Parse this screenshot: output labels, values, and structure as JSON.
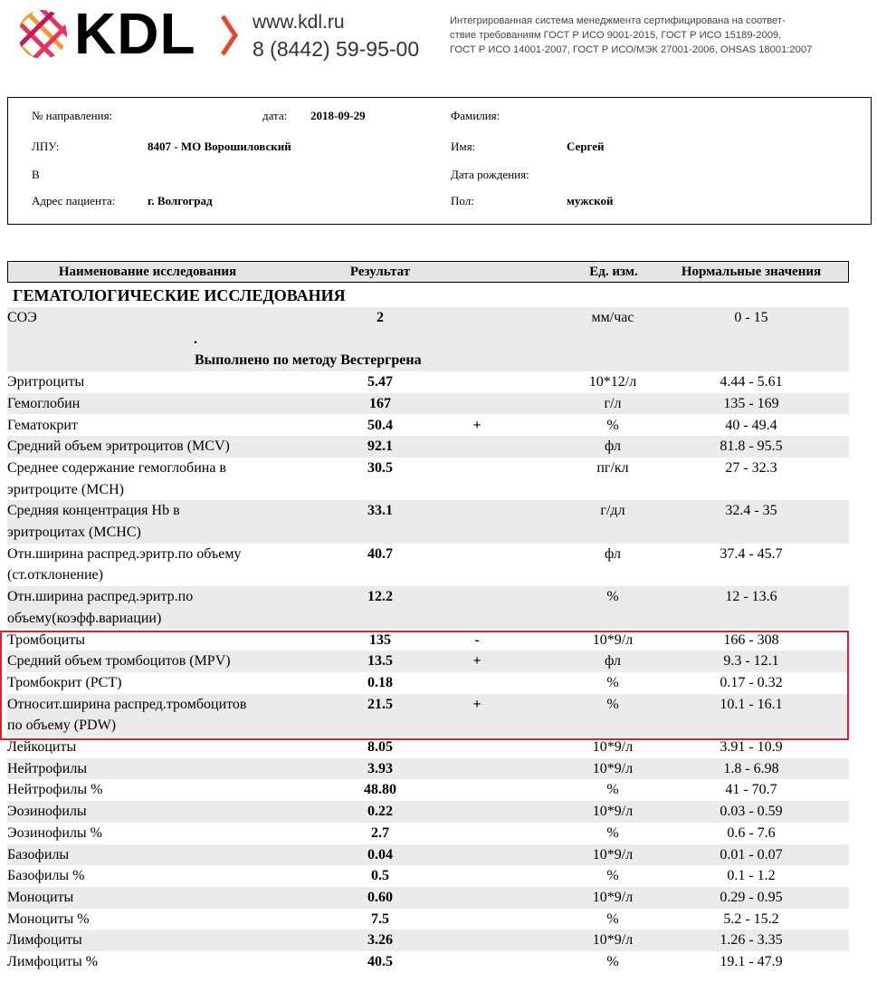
{
  "header": {
    "logo": "KDL",
    "website": "www.kdl.ru",
    "phone": "8 (8442) 59-95-00",
    "certification": [
      "Интегрированная система менеджмента сертифицирована на соответ-",
      "ствие требованиям ГОСТ Р ИСО 9001-2015, ГОСТ Р ИСО 15189-2009,",
      "ГОСТ Р ИСО 14001-2007, ГОСТ Р ИСО/МЭК 27001-2006, OHSAS 18001:2007"
    ]
  },
  "patient": {
    "direction_label": "№ направления:",
    "date_label": "дата:",
    "date": "2018-09-29",
    "surname_label": "Фамилия:",
    "lpu_label": "ЛПУ:",
    "lpu": "8407 - МО Ворошиловский",
    "name_label": "Имя:",
    "name": "Сергей",
    "b_label": "В",
    "birth_label": "Дата рождения:",
    "address_label": "Адрес пациента:",
    "address": "г. Волгоград",
    "sex_label": "Пол:",
    "sex": "мужской"
  },
  "table": {
    "headers": [
      "Наименование исследования",
      "Результат",
      "Ед. изм.",
      "Нормальные значения"
    ],
    "section": "ГЕМАТОЛОГИЧЕСКИЕ ИССЛЕДОВАНИЯ",
    "rows": [
      {
        "name": [
          "СОЭ"
        ],
        "result": "2",
        "unit": "мм/час",
        "range": "0 - 15",
        "note_marker": ".",
        "note": "Выполнено по методу Вестергрена"
      },
      {
        "name": [
          "Эритроциты"
        ],
        "result": "5.47",
        "unit": "10*12/л",
        "range": "4.44 - 5.61"
      },
      {
        "name": [
          "Гемоглобин"
        ],
        "result": "167",
        "unit": "г/л",
        "range": "135 - 169"
      },
      {
        "name": [
          "Гематокрит"
        ],
        "result": "50.4",
        "flag": "+",
        "unit": "%",
        "range": "40 - 49.4"
      },
      {
        "name": [
          "Средний объем эритроцитов (MCV)"
        ],
        "result": "92.1",
        "unit": "фл",
        "range": "81.8 - 95.5"
      },
      {
        "name": [
          "Среднее содержание гемоглобина в",
          "эритроците (MCH)"
        ],
        "result": "30.5",
        "unit": "пг/кл",
        "range": "27 - 32.3"
      },
      {
        "name": [
          "Средняя концентрация Hb в",
          "эритроцитах (MCHC)"
        ],
        "result": "33.1",
        "unit": "г/дл",
        "range": "32.4 - 35"
      },
      {
        "name": [
          "Отн.ширина распред.эритр.по объему",
          "(ст.отклонение)"
        ],
        "result": "40.7",
        "unit": "фл",
        "range": "37.4 - 45.7"
      },
      {
        "name": [
          "Отн.ширина распред.эритр.по",
          "объему(коэфф.вариации)"
        ],
        "result": "12.2",
        "unit": "%",
        "range": "12 - 13.6"
      },
      {
        "name": [
          "Тромбоциты"
        ],
        "result": "135",
        "flag": "-",
        "unit": "10*9/л",
        "range": "166 - 308"
      },
      {
        "name": [
          "Средний объем тромбоцитов (MPV)"
        ],
        "result": "13.5",
        "flag": "+",
        "unit": "фл",
        "range": "9.3 - 12.1"
      },
      {
        "name": [
          "Тромбокрит (PCT)"
        ],
        "result": "0.18",
        "unit": "%",
        "range": "0.17 - 0.32"
      },
      {
        "name": [
          "Относит.ширина распред.тромбоцитов",
          "по объему (PDW)"
        ],
        "result": "21.5",
        "flag": "+",
        "unit": "%",
        "range": "10.1 - 16.1"
      },
      {
        "name": [
          "Лейкоциты"
        ],
        "result": "8.05",
        "unit": "10*9/л",
        "range": "3.91 - 10.9"
      },
      {
        "name": [
          "Нейтрофилы"
        ],
        "result": "3.93",
        "unit": "10*9/л",
        "range": "1.8 - 6.98"
      },
      {
        "name": [
          "Нейтрофилы %"
        ],
        "result": "48.80",
        "unit": "%",
        "range": "41 - 70.7"
      },
      {
        "name": [
          "Эозинофилы"
        ],
        "result": "0.22",
        "unit": "10*9/л",
        "range": "0.03 - 0.59"
      },
      {
        "name": [
          "Эозинофилы %"
        ],
        "result": "2.7",
        "unit": "%",
        "range": "0.6 - 7.6"
      },
      {
        "name": [
          "Базофилы"
        ],
        "result": "0.04",
        "unit": "10*9/л",
        "range": "0.01 - 0.07"
      },
      {
        "name": [
          "Базофилы %"
        ],
        "result": "0.5",
        "unit": "%",
        "range": "0.1 - 1.2"
      },
      {
        "name": [
          "Моноциты"
        ],
        "result": "0.60",
        "unit": "10*9/л",
        "range": "0.29 - 0.95"
      },
      {
        "name": [
          "Моноциты %"
        ],
        "result": "7.5",
        "unit": "%",
        "range": "5.2 - 15.2"
      },
      {
        "name": [
          "Лимфоциты"
        ],
        "result": "3.26",
        "unit": "10*9/л",
        "range": "1.26 - 3.35"
      },
      {
        "name": [
          "Лимфоциты %"
        ],
        "result": "40.5",
        "unit": "%",
        "range": "19.1 - 47.9"
      }
    ]
  }
}
